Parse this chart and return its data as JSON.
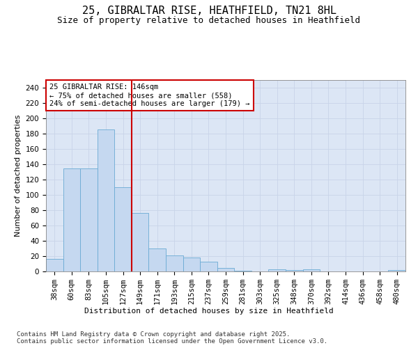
{
  "title_line1": "25, GIBRALTAR RISE, HEATHFIELD, TN21 8HL",
  "title_line2": "Size of property relative to detached houses in Heathfield",
  "xlabel": "Distribution of detached houses by size in Heathfield",
  "ylabel": "Number of detached properties",
  "categories": [
    "38sqm",
    "60sqm",
    "83sqm",
    "105sqm",
    "127sqm",
    "149sqm",
    "171sqm",
    "193sqm",
    "215sqm",
    "237sqm",
    "259sqm",
    "281sqm",
    "303sqm",
    "325sqm",
    "348sqm",
    "370sqm",
    "392sqm",
    "414sqm",
    "436sqm",
    "458sqm",
    "480sqm"
  ],
  "values": [
    16,
    135,
    135,
    185,
    110,
    76,
    30,
    21,
    18,
    13,
    5,
    1,
    0,
    3,
    2,
    3,
    0,
    0,
    0,
    0,
    2
  ],
  "bar_color": "#c5d8f0",
  "bar_edge_color": "#6aaad4",
  "vline_x_idx": 5,
  "vline_color": "#cc0000",
  "annotation_text": "25 GIBRALTAR RISE: 146sqm\n← 75% of detached houses are smaller (558)\n24% of semi-detached houses are larger (179) →",
  "annotation_box_color": "#ffffff",
  "annotation_box_edge": "#cc0000",
  "ylim": [
    0,
    250
  ],
  "yticks": [
    0,
    20,
    40,
    60,
    80,
    100,
    120,
    140,
    160,
    180,
    200,
    220,
    240
  ],
  "grid_color": "#c8d4e8",
  "plot_bg_color": "#dce6f5",
  "fig_bg_color": "#ffffff",
  "footer_text": "Contains HM Land Registry data © Crown copyright and database right 2025.\nContains public sector information licensed under the Open Government Licence v3.0.",
  "title_fontsize": 11,
  "subtitle_fontsize": 9,
  "axis_label_fontsize": 8,
  "tick_fontsize": 7.5,
  "annotation_fontsize": 7.5,
  "footer_fontsize": 6.5
}
